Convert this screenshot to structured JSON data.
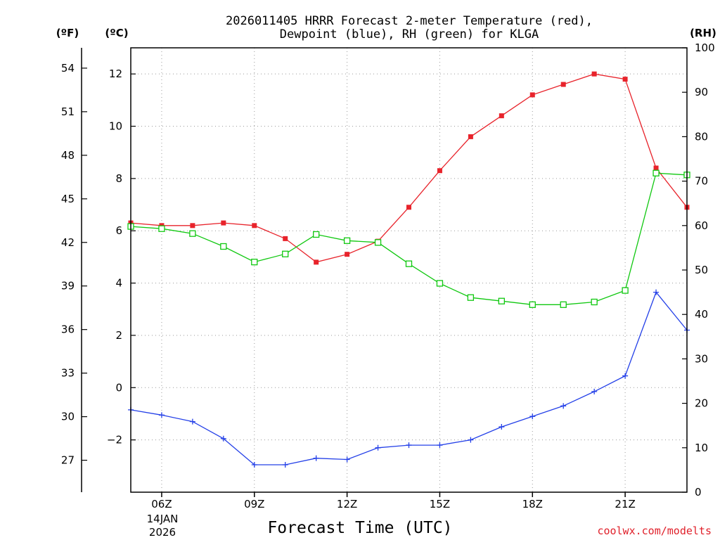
{
  "chart_data": {
    "type": "line",
    "title_line1": "2026011405 HRRR Forecast 2-meter Temperature (red),",
    "title_line2": "Dewpoint (blue), RH (green) for KLGA",
    "xlabel": "Forecast Time (UTC)",
    "credit": "coolwx.com/modelts",
    "units": {
      "fahrenheit": "(ºF)",
      "celsius": "(ºC)",
      "rh": "(RH)"
    },
    "date_label": [
      "14JAN",
      "2026"
    ],
    "hours": [
      5,
      6,
      7,
      8,
      9,
      10,
      11,
      12,
      13,
      14,
      15,
      16,
      17,
      18,
      19,
      20,
      21,
      22,
      23
    ],
    "x_range": [
      5,
      23
    ],
    "x_ticks": [
      {
        "hour": 6,
        "label": "06Z"
      },
      {
        "hour": 9,
        "label": "09Z"
      },
      {
        "hour": 12,
        "label": "12Z"
      },
      {
        "hour": 15,
        "label": "15Z"
      },
      {
        "hour": 18,
        "label": "18Z"
      },
      {
        "hour": 21,
        "label": "21Z"
      }
    ],
    "celsius_range": [
      -4.0,
      13.0
    ],
    "celsius_ticks": [
      "12",
      "10",
      "8",
      "6",
      "4",
      "2",
      "0",
      "−2"
    ],
    "fahrenheit_ticks": [
      "54",
      "51",
      "48",
      "45",
      "42",
      "39",
      "36",
      "33",
      "30",
      "27"
    ],
    "rh_range": [
      0,
      100
    ],
    "rh_ticks": [
      "100",
      "90",
      "80",
      "70",
      "60",
      "50",
      "40",
      "30",
      "20",
      "10",
      "0"
    ],
    "series": [
      {
        "name": "Temperature",
        "axis": "C",
        "color": "#e8232b",
        "marker": "filled-square",
        "values": [
          6.3,
          6.2,
          6.2,
          6.3,
          6.2,
          5.7,
          4.8,
          5.1,
          5.6,
          6.9,
          8.3,
          9.6,
          10.4,
          11.2,
          11.6,
          12.0,
          11.8,
          8.4,
          6.9
        ]
      },
      {
        "name": "Dewpoint",
        "axis": "C",
        "color": "#2440e8",
        "marker": "plus",
        "values": [
          -0.85,
          -1.05,
          -1.3,
          -1.95,
          -2.95,
          -2.95,
          -2.7,
          -2.75,
          -2.3,
          -2.2,
          -2.2,
          -2.0,
          -1.5,
          -1.1,
          -0.7,
          -0.15,
          0.45,
          3.65,
          2.2
        ]
      },
      {
        "name": "RH",
        "axis": "RH",
        "color": "#10c810",
        "marker": "open-square",
        "values": [
          59.8,
          59.3,
          58.2,
          55.3,
          51.8,
          53.6,
          58.0,
          56.6,
          56.2,
          51.4,
          47.0,
          43.8,
          43.0,
          42.2,
          42.2,
          42.8,
          45.4,
          71.8,
          71.4
        ]
      }
    ]
  }
}
